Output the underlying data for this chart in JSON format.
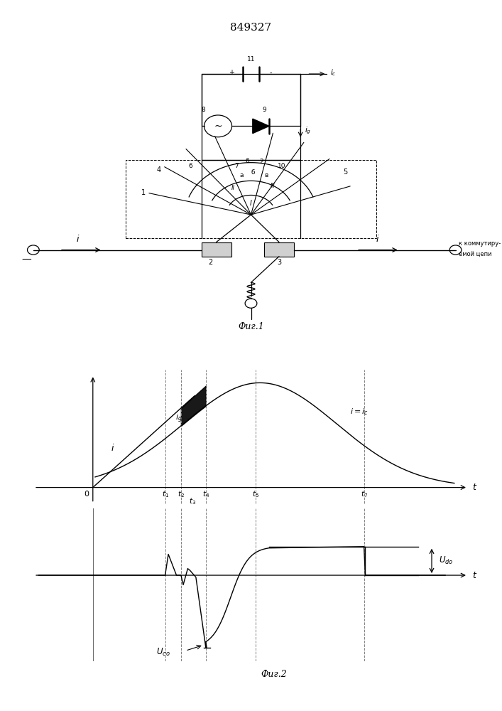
{
  "title": "849327",
  "title_fontsize": 11,
  "bg_color": "#ffffff",
  "fig1_label": "Фиг.1",
  "fig2_label": "Фиг.2"
}
